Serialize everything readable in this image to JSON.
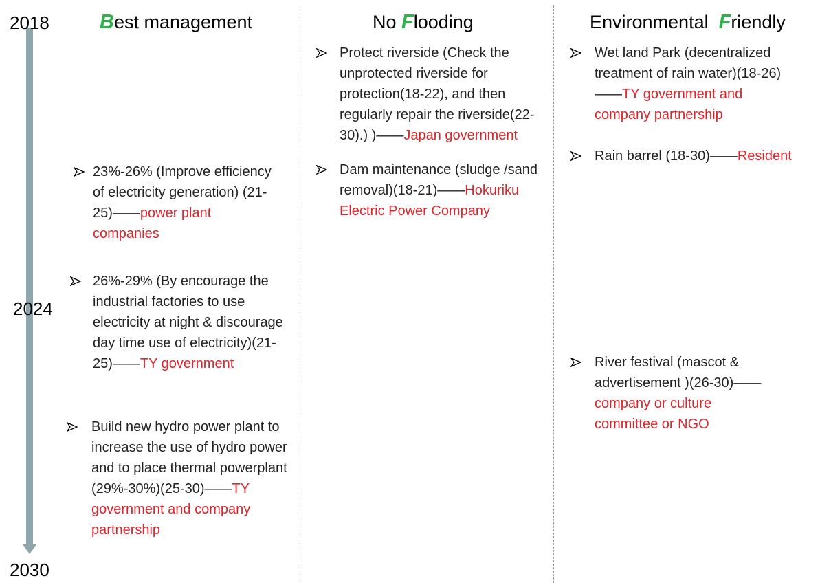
{
  "timeline": {
    "start": "2018",
    "middle": "2024",
    "end": "2030"
  },
  "columns": [
    {
      "title": {
        "prefix": "",
        "letter": "B",
        "rest": "est management"
      },
      "items": [
        {
          "text": "23%-26% (Improve efficiency of electricity generation) (21-25)——",
          "owner": "power plant companies"
        },
        {
          "text": "26%-29% (By encourage the industrial factories to use electricity at night & discourage day time use of electricity)(21-25)——",
          "owner": "TY government"
        },
        {
          "text": "Build new hydro power plant to increase the use of hydro power and to place thermal powerplant (29%-30%)(25-30)——",
          "owner": "TY government and company partnership"
        }
      ]
    },
    {
      "title": {
        "prefix": "No ",
        "letter": "F",
        "rest": "looding"
      },
      "items": [
        {
          "text": "Protect riverside (Check the unprotected riverside for protection(18-22), and then regularly repair the riverside(22-30).) )——",
          "owner": "Japan  government"
        },
        {
          "text": "Dam maintenance (sludge /sand removal)(18-21)——",
          "owner": "Hokuriku Electric Power Company"
        }
      ]
    },
    {
      "title": {
        "prefix": "Environmental  ",
        "letter": "F",
        "rest": "riendly"
      },
      "items": [
        {
          "text": "Wet land Park (decentralized treatment of rain water)(18-26)——",
          "owner": "TY government and company partnership"
        },
        {
          "text": "Rain barrel (18-30)——",
          "owner": "Resident"
        },
        {
          "text": "River festival (mascot & advertisement )(26-30)——",
          "owner": "company or culture committee or NGO"
        }
      ]
    }
  ]
}
